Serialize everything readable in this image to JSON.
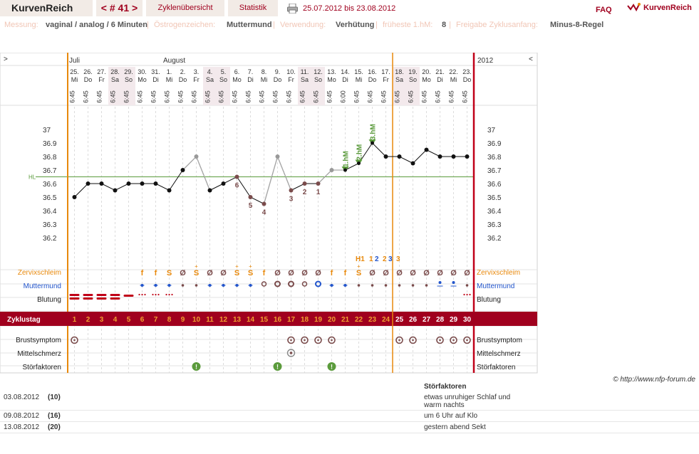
{
  "topbar": {
    "brand": "KurvenReich",
    "cycle_nav": "< # 41 >",
    "overview": "Zyklenübersicht",
    "stats": "Statistik",
    "range": "25.07.2012 bis 23.08.2012",
    "faq": "FAQ",
    "brand_right": "KurvenReich"
  },
  "settings": {
    "measure_label": "Messung:",
    "measure_value": "vaginal / analog / 6 Minuten",
    "estro_label": "Östrogenzeichen:",
    "estro_value": "Muttermund",
    "usage_label": "Verwendung:",
    "usage_value": "Verhütung",
    "hm_label": "früheste 1.hM:",
    "hm_value": "8",
    "release_label": "Freigabe Zyklusanfang:",
    "release_value": "Minus-8-Regel"
  },
  "header": {
    "prev_arrow": ">",
    "next_arrow": "<",
    "year": "2012",
    "month1": "Juli",
    "month2": "August"
  },
  "row_labels": {
    "cervix": "Zervixschleim",
    "mm": "Muttermund",
    "bleed": "Blutung",
    "cycleday": "Zyklustag",
    "breast": "Brustsymptom",
    "mittel": "Mittelschmerz",
    "stoer": "Störfaktoren"
  },
  "colors": {
    "accent": "#a0001e",
    "orange": "#e8890c",
    "grid": "#d8d8d8",
    "blue": "#2255cc",
    "green": "#5b9b3c"
  },
  "days": [
    {
      "d": "25.",
      "w": "Mi",
      "t": "6:45"
    },
    {
      "d": "26.",
      "w": "Do",
      "t": "6:45"
    },
    {
      "d": "27.",
      "w": "Fr",
      "t": "6:45"
    },
    {
      "d": "28.",
      "w": "Sa",
      "t": "6:45"
    },
    {
      "d": "29.",
      "w": "So",
      "t": "6:45"
    },
    {
      "d": "30.",
      "w": "Mo",
      "t": "6:45"
    },
    {
      "d": "31.",
      "w": "Di",
      "t": "6:45"
    },
    {
      "d": "1.",
      "w": "Mi",
      "t": "6:45"
    },
    {
      "d": "2.",
      "w": "Do",
      "t": "6:45"
    },
    {
      "d": "3.",
      "w": "Fr",
      "t": "6:45"
    },
    {
      "d": "4.",
      "w": "Sa",
      "t": "6:45"
    },
    {
      "d": "5.",
      "w": "So",
      "t": "6:45"
    },
    {
      "d": "6.",
      "w": "Mo",
      "t": "6:45"
    },
    {
      "d": "7.",
      "w": "Di",
      "t": "6:45"
    },
    {
      "d": "8.",
      "w": "Mi",
      "t": "6:45"
    },
    {
      "d": "9.",
      "w": "Do",
      "t": "6:45"
    },
    {
      "d": "10.",
      "w": "Fr",
      "t": "6:45"
    },
    {
      "d": "11.",
      "w": "Sa",
      "t": "6:45"
    },
    {
      "d": "12.",
      "w": "So",
      "t": "6:45"
    },
    {
      "d": "13.",
      "w": "Mo",
      "t": "6:45"
    },
    {
      "d": "14.",
      "w": "Di",
      "t": "6:00"
    },
    {
      "d": "15.",
      "w": "Mi",
      "t": "6:45"
    },
    {
      "d": "16.",
      "w": "Do",
      "t": "6:45"
    },
    {
      "d": "17.",
      "w": "Fr",
      "t": "6:45"
    },
    {
      "d": "18.",
      "w": "Sa",
      "t": "6:45"
    },
    {
      "d": "19.",
      "w": "So",
      "t": "6:45"
    },
    {
      "d": "20.",
      "w": "Mo",
      "t": "6:45"
    },
    {
      "d": "21.",
      "w": "Di",
      "t": "6:45"
    },
    {
      "d": "22.",
      "w": "Mi",
      "t": "6:45"
    },
    {
      "d": "23.",
      "w": "Do",
      "t": "6:45"
    }
  ],
  "chart_data": {
    "type": "line",
    "x": [
      1,
      2,
      3,
      4,
      5,
      6,
      7,
      8,
      9,
      10,
      11,
      12,
      13,
      14,
      15,
      16,
      17,
      18,
      19,
      20,
      21,
      22,
      23,
      24,
      25,
      26,
      27,
      28,
      29,
      30
    ],
    "series": [
      {
        "values": [
          36.5,
          36.6,
          36.6,
          36.55,
          36.6,
          36.6,
          36.6,
          36.55,
          36.7,
          36.8,
          36.55,
          36.6,
          36.65,
          36.5,
          36.45,
          36.8,
          36.55,
          36.6,
          36.6,
          36.7,
          36.7,
          36.75,
          36.9,
          36.8,
          36.8,
          36.75,
          36.85,
          36.8,
          36.8,
          36.8
        ]
      }
    ],
    "point_style": [
      "b",
      "b",
      "b",
      "b",
      "b",
      "b",
      "b",
      "b",
      "b",
      "g",
      "b",
      "b",
      "m",
      "m",
      "m",
      "g",
      "m",
      "m",
      "m",
      "g",
      "t",
      "t",
      "t",
      "b",
      "b",
      "b",
      "b",
      "b",
      "b",
      "b"
    ],
    "lower_labels": {
      "13": "6",
      "14": "5",
      "15": "4",
      "17": "3",
      "18": "2",
      "19": "1"
    },
    "upper_labels": {
      "21": "1.hM",
      "22": "2.hM",
      "23": "3.hM"
    },
    "y_ticks": [
      "37",
      "36.9",
      "36.8",
      "36.7",
      "36.6",
      "36.5",
      "36.4",
      "36.3",
      "36.2"
    ],
    "ylim": [
      36.2,
      37.0
    ],
    "hl_value": 36.65,
    "hl_label": "HL",
    "eval_markers": [
      {
        "day": 22,
        "text": "H1",
        "color": "orange"
      },
      {
        "day": 23,
        "text": "1",
        "color": "orange"
      },
      {
        "day": 23,
        "text": "2",
        "color": "blue"
      },
      {
        "day": 24,
        "text": "2",
        "color": "orange"
      },
      {
        "day": 24,
        "text": "3",
        "color": "blue"
      },
      {
        "day": 25,
        "text": "3",
        "color": "orange"
      }
    ],
    "cycle_start_line_day": 1,
    "infertile_from_day": 25,
    "cervix": [
      "",
      "",
      "",
      "",
      "",
      "f",
      "f",
      "S",
      "Ø",
      "S",
      "Ø",
      "Ø",
      "S",
      "S",
      "f",
      "Ø",
      "Ø",
      "Ø",
      "Ø",
      "f",
      "f",
      "S",
      "Ø",
      "Ø",
      "Ø",
      "Ø",
      "Ø",
      "Ø",
      "Ø",
      "Ø"
    ],
    "cervix_plus": [
      false,
      false,
      false,
      false,
      false,
      false,
      false,
      false,
      false,
      true,
      false,
      false,
      true,
      true,
      false,
      false,
      false,
      false,
      false,
      false,
      false,
      true,
      false,
      false,
      false,
      false,
      false,
      false,
      false,
      false
    ],
    "muttermund": [
      "",
      "",
      "",
      "",
      "",
      "d",
      "d",
      "d",
      "l",
      "l",
      "d",
      "d",
      "d",
      "d",
      "o",
      "O",
      "O",
      "o",
      "O",
      "d",
      "d",
      "l",
      "l",
      "l",
      "l",
      "l",
      "l",
      "u",
      "u",
      "l"
    ],
    "bleeding": [
      "strong",
      "strong",
      "strong",
      "strong",
      "mid",
      "spot",
      "spot",
      "spot",
      "",
      "",
      "",
      "",
      "",
      "",
      "",
      "",
      "",
      "",
      "",
      "",
      "",
      "",
      "",
      "",
      "",
      "",
      "",
      "",
      "",
      "spot"
    ],
    "cycledays": [
      "1",
      "2",
      "3",
      "4",
      "5",
      "6",
      "7",
      "8",
      "9",
      "10",
      "11",
      "12",
      "13",
      "14",
      "15",
      "16",
      "17",
      "18",
      "19",
      "20",
      "21",
      "22",
      "23",
      "24",
      "25",
      "26",
      "27",
      "28",
      "29",
      "30"
    ],
    "breast": [
      1,
      0,
      0,
      0,
      0,
      0,
      0,
      0,
      0,
      0,
      0,
      0,
      0,
      0,
      0,
      0,
      1,
      1,
      1,
      1,
      0,
      0,
      0,
      0,
      1,
      1,
      0,
      1,
      1,
      1
    ],
    "mittel": [
      0,
      0,
      0,
      0,
      0,
      0,
      0,
      0,
      0,
      0,
      0,
      0,
      0,
      0,
      0,
      0,
      1,
      0,
      0,
      0,
      0,
      0,
      0,
      0,
      0,
      0,
      0,
      0,
      0,
      0
    ],
    "stoer": [
      0,
      0,
      0,
      0,
      0,
      0,
      0,
      0,
      0,
      1,
      0,
      0,
      0,
      0,
      0,
      1,
      0,
      0,
      0,
      1,
      0,
      0,
      0,
      0,
      0,
      0,
      0,
      0,
      0,
      0
    ]
  },
  "copyright": "© http://www.nfp-forum.de",
  "notes": {
    "header": "Störfaktoren",
    "rows": [
      {
        "date": "03.08.2012",
        "day": "(10)",
        "text": "etwas unruhiger Schlaf und warm nachts"
      },
      {
        "date": "09.08.2012",
        "day": "(16)",
        "text": "um 6 Uhr auf Klo"
      },
      {
        "date": "13.08.2012",
        "day": "(20)",
        "text": "gestern abend Sekt"
      }
    ]
  }
}
